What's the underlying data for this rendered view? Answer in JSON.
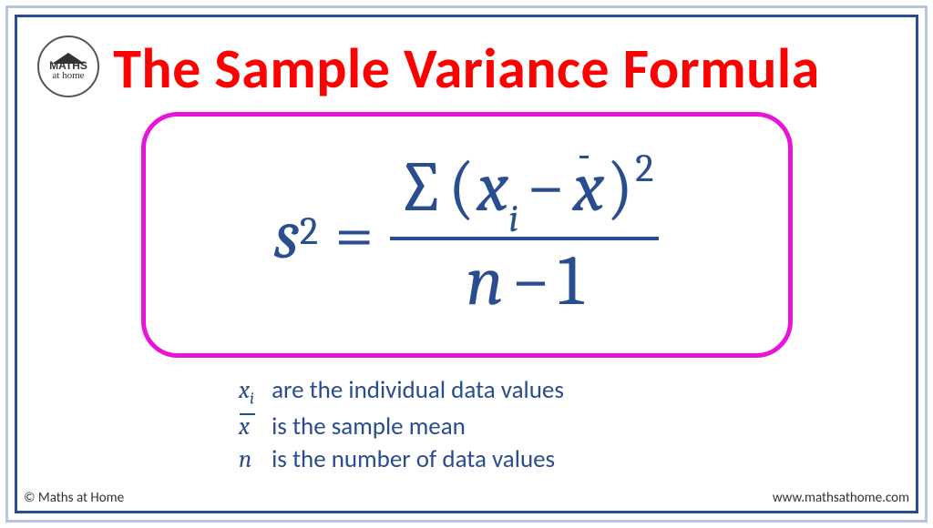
{
  "colors": {
    "outer_border": "#b8c5de",
    "inner_border": "#2a4d8f",
    "title": "#ff0000",
    "formula_border": "#e815d9",
    "math_text": "#2a4d8f",
    "background": "#ffffff",
    "footer_text": "#333333"
  },
  "logo": {
    "main": "MATHS",
    "sub": "at home"
  },
  "title": "The Sample Variance Formula",
  "formula": {
    "lhs_base": "s",
    "lhs_sup": "2",
    "eq": "=",
    "sigma": "∑",
    "open": "(",
    "xi_base": "x",
    "xi_sub": "i",
    "minus": "−",
    "xbar_base": "x",
    "close": ")",
    "pow": "2",
    "den_n": "n",
    "den_minus": "−",
    "den_one": "1"
  },
  "legend": {
    "l1_sym_base": "x",
    "l1_sym_sub": "i",
    "l1_text": " are the individual data values",
    "l2_sym_base": "x",
    "l2_text": " is the sample mean",
    "l3_sym": "n",
    "l3_text": " is the number of data values"
  },
  "footer": {
    "copyright": "© Maths at Home",
    "url": "www.mathsathome.com"
  }
}
